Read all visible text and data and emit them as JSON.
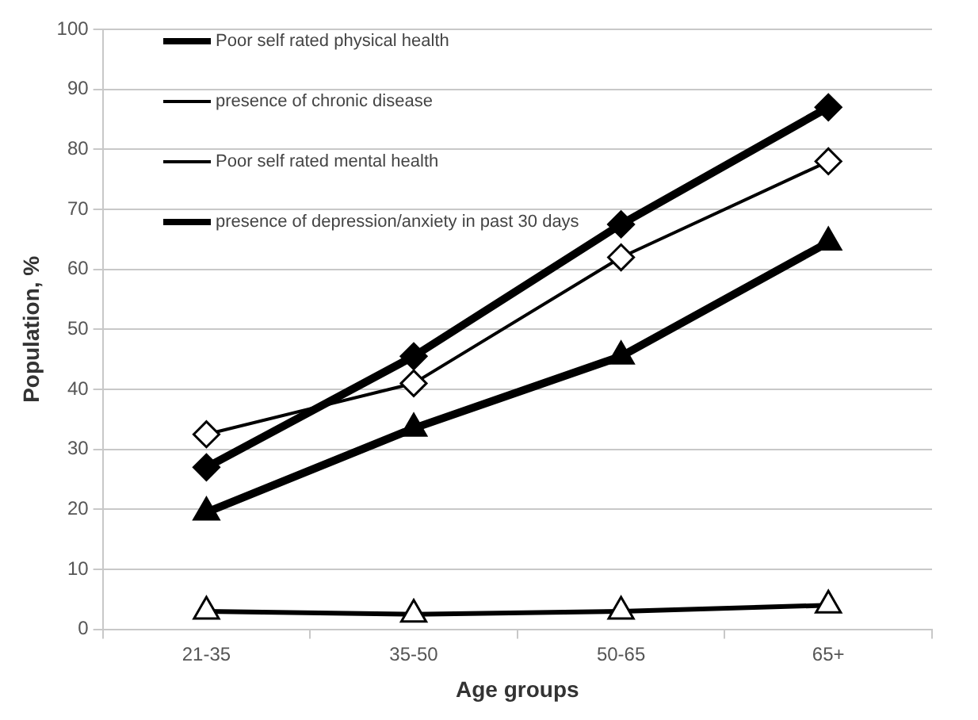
{
  "chart_data": {
    "type": "line",
    "xlabel": "Age groups",
    "ylabel": "Population, %",
    "categories": [
      "21-35",
      "35-50",
      "50-65",
      "65+"
    ],
    "series": [
      {
        "name": "Poor self rated physical health",
        "color": "#000000",
        "marker": "diamond",
        "values": [
          27,
          45.5,
          67.5,
          87
        ]
      },
      {
        "name": "presence of chronic disease",
        "color": "#000000",
        "marker": "diamond",
        "values": [
          32.5,
          41,
          62,
          78
        ]
      },
      {
        "name": "Poor self rated mental health",
        "color": "#000000",
        "marker": "triangle",
        "values": [
          3,
          2.5,
          3,
          4
        ]
      },
      {
        "name": "presence of depression/anxiety in past 30 days",
        "color": "#000000",
        "marker": "triangle",
        "values": [
          19.5,
          33.5,
          45.5,
          64.5
        ]
      }
    ],
    "ylim": [
      0,
      100
    ],
    "yticks": [
      0,
      10,
      20,
      30,
      40,
      50,
      60,
      70,
      80,
      90,
      100
    ],
    "grid": "y",
    "legend": "top left",
    "line_style": "solid"
  }
}
